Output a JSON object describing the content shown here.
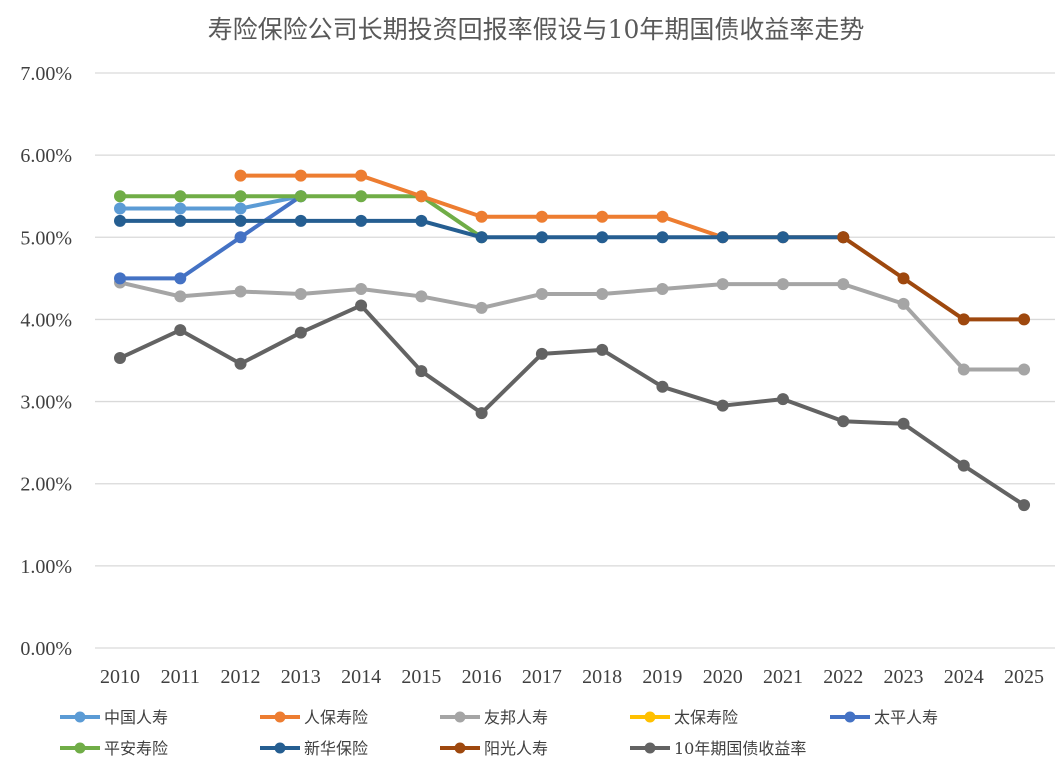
{
  "chart_data": {
    "type": "line",
    "title": "寿险保险公司长期投资回报率假设与10年期国债收益率走势",
    "xlabel": "",
    "ylabel": "",
    "categories": [
      "2010",
      "2011",
      "2012",
      "2013",
      "2014",
      "2015",
      "2016",
      "2017",
      "2018",
      "2019",
      "2020",
      "2021",
      "2022",
      "2023",
      "2024",
      "2025"
    ],
    "ylim": [
      0,
      7
    ],
    "yticks": [
      "0.00%",
      "1.00%",
      "2.00%",
      "3.00%",
      "4.00%",
      "5.00%",
      "6.00%",
      "7.00%"
    ],
    "grid": true,
    "legend": "bottom",
    "series": [
      {
        "name": "中国人寿",
        "color": "#5B9BD5",
        "values": [
          5.35,
          5.35,
          5.35,
          5.5,
          null,
          null,
          null,
          null,
          null,
          null,
          null,
          null,
          null,
          null,
          null,
          null
        ]
      },
      {
        "name": "人保寿险",
        "color": "#ED7D31",
        "values": [
          null,
          null,
          5.75,
          5.75,
          5.75,
          5.5,
          5.25,
          5.25,
          5.25,
          5.25,
          5.0,
          5.0,
          5.0,
          null,
          null,
          null
        ]
      },
      {
        "name": "友邦人寿",
        "color": "#A5A5A5",
        "values": [
          4.45,
          4.28,
          4.34,
          4.31,
          4.37,
          4.28,
          4.14,
          4.31,
          4.31,
          4.37,
          4.43,
          4.43,
          4.43,
          4.19,
          3.39,
          3.39
        ]
      },
      {
        "name": "太保寿险",
        "color": "#FFC000",
        "values": [
          null,
          null,
          null,
          null,
          null,
          null,
          null,
          null,
          null,
          null,
          null,
          null,
          null,
          null,
          null,
          null
        ]
      },
      {
        "name": "太平人寿",
        "color": "#4472C4",
        "values": [
          4.5,
          4.5,
          5.0,
          5.5,
          null,
          null,
          null,
          null,
          null,
          null,
          null,
          null,
          null,
          null,
          null,
          null
        ]
      },
      {
        "name": "平安寿险",
        "color": "#70AD47",
        "values": [
          5.5,
          5.5,
          5.5,
          5.5,
          5.5,
          5.5,
          5.0,
          null,
          null,
          null,
          null,
          null,
          null,
          null,
          null,
          null
        ]
      },
      {
        "name": "新华保险",
        "color": "#255E91",
        "values": [
          5.2,
          5.2,
          5.2,
          5.2,
          5.2,
          5.2,
          5.0,
          5.0,
          5.0,
          5.0,
          5.0,
          5.0,
          5.0,
          null,
          null,
          null
        ]
      },
      {
        "name": "阳光人寿",
        "color": "#9E480E",
        "values": [
          null,
          null,
          null,
          null,
          null,
          null,
          null,
          null,
          null,
          null,
          null,
          null,
          5.0,
          4.5,
          4.0,
          4.0
        ]
      },
      {
        "name": "10年期国债收益率",
        "color": "#636363",
        "values": [
          3.53,
          3.87,
          3.46,
          3.84,
          4.17,
          3.37,
          2.86,
          3.58,
          3.63,
          3.18,
          2.95,
          3.03,
          2.76,
          2.73,
          2.22,
          1.74
        ]
      }
    ]
  }
}
